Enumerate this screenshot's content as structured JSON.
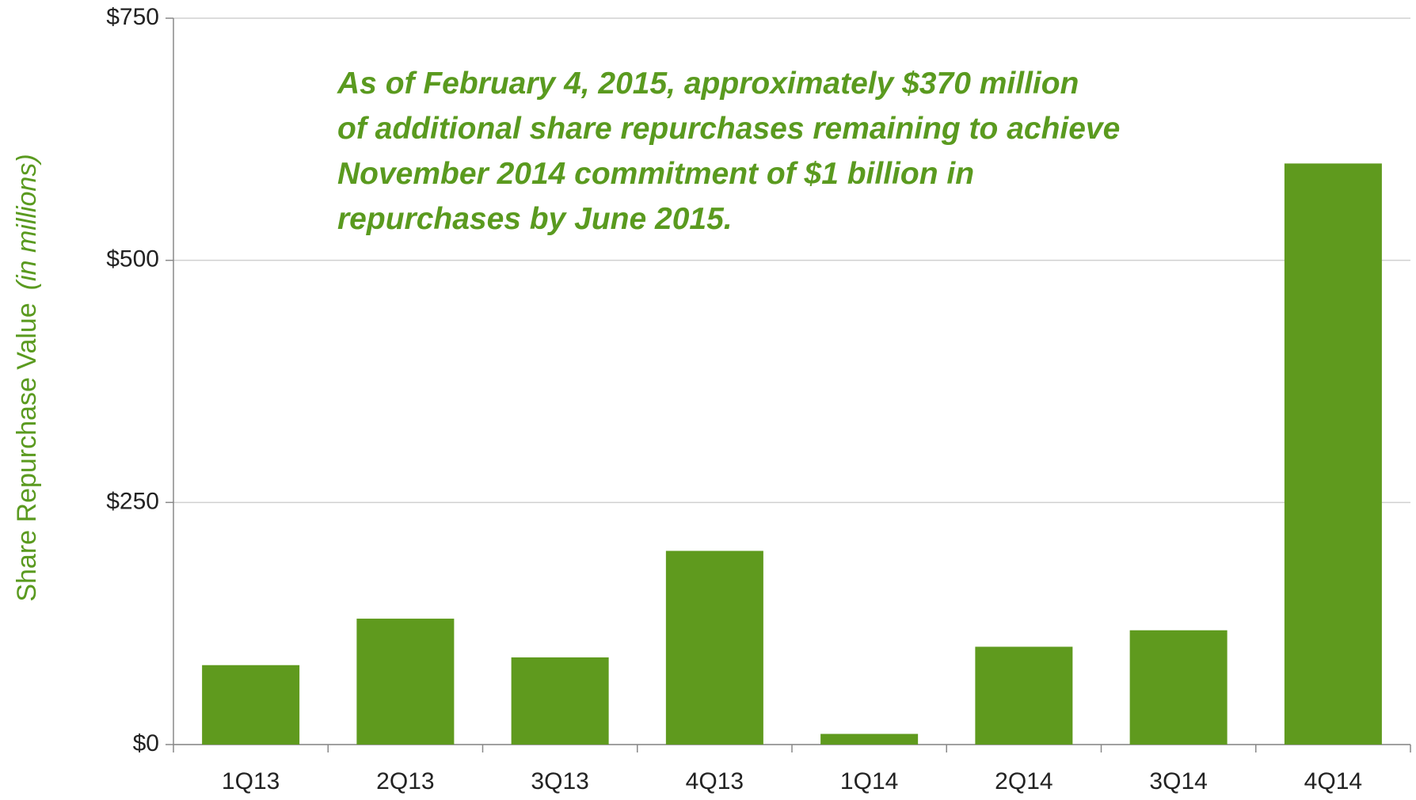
{
  "chart_data": {
    "type": "bar",
    "y_label": "Share Repurchase Value",
    "y_label_unit": "(in millions)",
    "annotation": [
      "As of February 4, 2015, approximately $370 million",
      "of additional share repurchases remaining to achieve",
      "November 2014 commitment of $1 billion in",
      "repurchases by June 2015."
    ],
    "categories": [
      "1Q13",
      "2Q13",
      "3Q13",
      "4Q13",
      "1Q14",
      "2Q14",
      "3Q14",
      "4Q14"
    ],
    "values": [
      82,
      130,
      90,
      200,
      11,
      101,
      118,
      600
    ],
    "color": "#5f9a1e",
    "ylim": [
      0,
      750
    ],
    "yticks": [
      {
        "value": 0,
        "label": "$0"
      },
      {
        "value": 250,
        "label": "$250"
      },
      {
        "value": 500,
        "label": "$500"
      },
      {
        "value": 750,
        "label": "$750"
      }
    ],
    "grid": true
  }
}
